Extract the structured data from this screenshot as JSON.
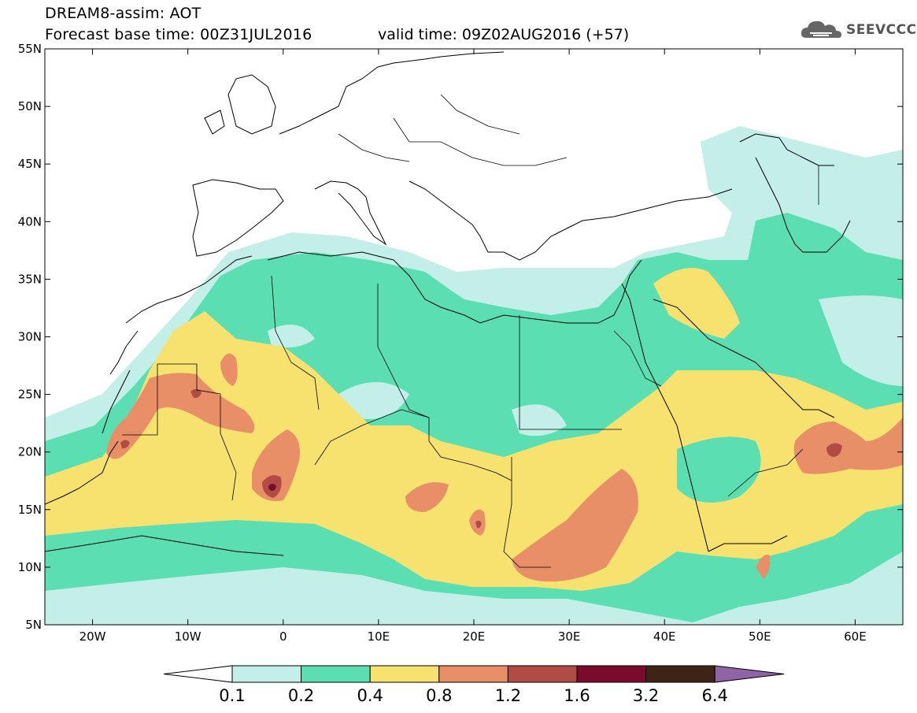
{
  "header": {
    "title": "DREAM8-assim: AOT",
    "base_time": "Forecast base time: 00Z31JUL2016",
    "valid_time": "valid time: 09Z02AUG2016 (+57)"
  },
  "logo": {
    "text": "SEEVCCC",
    "icon": "cloud-icon"
  },
  "map": {
    "lon_range": [
      -25,
      65
    ],
    "lat_range": [
      5,
      55
    ],
    "lon_ticks": [
      "20W",
      "10W",
      "0",
      "10E",
      "20E",
      "30E",
      "40E",
      "50E",
      "60E"
    ],
    "lat_ticks": [
      "5N",
      "10N",
      "15N",
      "20N",
      "25N",
      "30N",
      "35N",
      "40N",
      "45N",
      "50N",
      "55N"
    ]
  },
  "colorbar": {
    "levels": [
      "0.1",
      "0.2",
      "0.4",
      "0.8",
      "1.2",
      "1.6",
      "3.2",
      "6.4"
    ],
    "colors": [
      "#ffffff",
      "#c4efe9",
      "#5bdfb2",
      "#f7e26f",
      "#e88f68",
      "#b04c44",
      "#7b0b2c",
      "#3e2417",
      "#8e64a6"
    ]
  }
}
